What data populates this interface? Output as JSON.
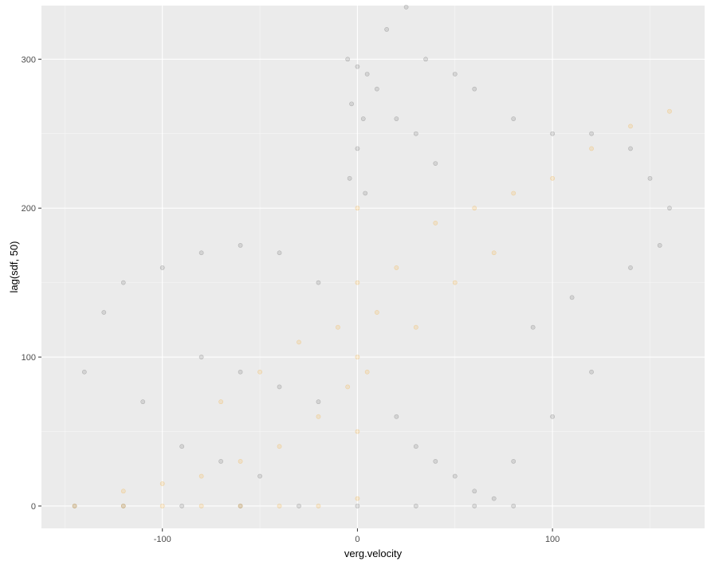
{
  "chart_data": {
    "type": "scatter",
    "title": "",
    "xlabel": "verg.velocity",
    "ylabel": "lag(sdf, 50)",
    "xlim": [
      -162,
      178
    ],
    "ylim": [
      -15,
      336
    ],
    "x_ticks": [
      -100,
      0,
      100
    ],
    "y_ticks": [
      0,
      100,
      200,
      300
    ],
    "x_tick_labels": [
      "-100",
      "0",
      "100"
    ],
    "y_tick_labels": [
      "0",
      "100",
      "200",
      "300"
    ],
    "grid": true,
    "legend": "none",
    "series": [
      {
        "color": "#000000",
        "opacity": 0.1,
        "points": [
          [
            -145,
            0
          ],
          [
            -120,
            0
          ],
          [
            -90,
            0
          ],
          [
            -60,
            0
          ],
          [
            -30,
            0
          ],
          [
            0,
            0
          ],
          [
            30,
            0
          ],
          [
            60,
            0
          ],
          [
            80,
            0
          ],
          [
            -5,
            300
          ],
          [
            0,
            295
          ],
          [
            5,
            290
          ],
          [
            -3,
            270
          ],
          [
            3,
            260
          ],
          [
            0,
            240
          ],
          [
            -4,
            220
          ],
          [
            4,
            210
          ],
          [
            10,
            280
          ],
          [
            20,
            260
          ],
          [
            30,
            250
          ],
          [
            40,
            230
          ],
          [
            25,
            335
          ],
          [
            15,
            320
          ],
          [
            35,
            300
          ],
          [
            50,
            290
          ],
          [
            60,
            280
          ],
          [
            80,
            260
          ],
          [
            100,
            250
          ],
          [
            120,
            250
          ],
          [
            140,
            240
          ],
          [
            150,
            220
          ],
          [
            160,
            200
          ],
          [
            155,
            175
          ],
          [
            140,
            160
          ],
          [
            -140,
            90
          ],
          [
            -130,
            130
          ],
          [
            -120,
            150
          ],
          [
            -100,
            160
          ],
          [
            -80,
            170
          ],
          [
            -60,
            175
          ],
          [
            -40,
            170
          ],
          [
            -20,
            150
          ],
          [
            -110,
            70
          ],
          [
            -90,
            40
          ],
          [
            -70,
            30
          ],
          [
            -50,
            20
          ],
          [
            20,
            60
          ],
          [
            30,
            40
          ],
          [
            40,
            30
          ],
          [
            50,
            20
          ],
          [
            60,
            10
          ],
          [
            70,
            5
          ],
          [
            90,
            120
          ],
          [
            110,
            140
          ],
          [
            120,
            90
          ],
          [
            100,
            60
          ],
          [
            80,
            30
          ],
          [
            -80,
            100
          ],
          [
            -60,
            90
          ],
          [
            -40,
            80
          ],
          [
            -20,
            70
          ]
        ]
      },
      {
        "color": "#f5a00f",
        "opacity": 0.15,
        "points": [
          [
            -145,
            0
          ],
          [
            -120,
            0
          ],
          [
            -100,
            0
          ],
          [
            -80,
            0
          ],
          [
            -60,
            0
          ],
          [
            -40,
            0
          ],
          [
            -20,
            0
          ],
          [
            0,
            5
          ],
          [
            0,
            50
          ],
          [
            0,
            100
          ],
          [
            0,
            150
          ],
          [
            0,
            200
          ],
          [
            -10,
            120
          ],
          [
            10,
            130
          ],
          [
            -5,
            80
          ],
          [
            5,
            90
          ],
          [
            -20,
            60
          ],
          [
            -40,
            40
          ],
          [
            -60,
            30
          ],
          [
            -80,
            20
          ],
          [
            -100,
            15
          ],
          [
            -120,
            10
          ],
          [
            20,
            160
          ],
          [
            40,
            190
          ],
          [
            60,
            200
          ],
          [
            80,
            210
          ],
          [
            100,
            220
          ],
          [
            120,
            240
          ],
          [
            140,
            255
          ],
          [
            160,
            265
          ],
          [
            -30,
            110
          ],
          [
            -50,
            90
          ],
          [
            -70,
            70
          ],
          [
            30,
            120
          ],
          [
            50,
            150
          ],
          [
            70,
            170
          ]
        ]
      }
    ]
  }
}
